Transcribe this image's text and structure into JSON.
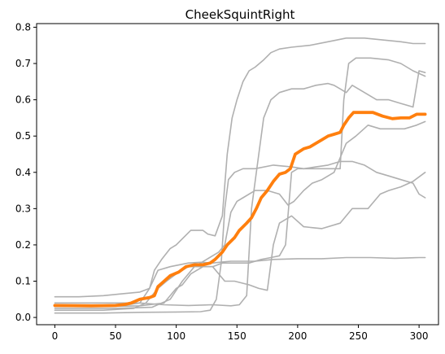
{
  "chart_data": {
    "type": "line",
    "title": "CheekSquintRight",
    "xlabel": "",
    "ylabel": "",
    "xlim": [
      -15,
      316
    ],
    "ylim": [
      -0.02,
      0.81
    ],
    "xticks": [
      0,
      50,
      100,
      150,
      200,
      250,
      300
    ],
    "yticks": [
      0.0,
      0.1,
      0.2,
      0.3,
      0.4,
      0.5,
      0.6,
      0.7,
      0.8
    ],
    "grid": false,
    "legend": "none",
    "colors": {
      "background_series": "#b0b0b0",
      "mean_series": "#ff7f0e"
    },
    "series": [
      {
        "style": "gray",
        "points": [
          [
            0,
            0.057
          ],
          [
            20,
            0.057
          ],
          [
            40,
            0.06
          ],
          [
            55,
            0.065
          ],
          [
            70,
            0.07
          ],
          [
            78,
            0.08
          ],
          [
            85,
            0.13
          ],
          [
            95,
            0.14
          ],
          [
            110,
            0.15
          ],
          [
            120,
            0.152
          ],
          [
            130,
            0.15
          ],
          [
            138,
            0.153
          ],
          [
            145,
            0.155
          ],
          [
            165,
            0.155
          ],
          [
            180,
            0.16
          ],
          [
            200,
            0.162
          ],
          [
            220,
            0.162
          ],
          [
            240,
            0.165
          ],
          [
            260,
            0.165
          ],
          [
            280,
            0.163
          ],
          [
            300,
            0.165
          ],
          [
            305,
            0.165
          ]
        ]
      },
      {
        "style": "gray",
        "points": [
          [
            0,
            0.03
          ],
          [
            30,
            0.03
          ],
          [
            50,
            0.032
          ],
          [
            60,
            0.035
          ],
          [
            70,
            0.04
          ],
          [
            78,
            0.08
          ],
          [
            82,
            0.13
          ],
          [
            88,
            0.16
          ],
          [
            95,
            0.19
          ],
          [
            100,
            0.2
          ],
          [
            112,
            0.24
          ],
          [
            122,
            0.24
          ],
          [
            126,
            0.23
          ],
          [
            132,
            0.225
          ],
          [
            138,
            0.28
          ],
          [
            142,
            0.45
          ],
          [
            146,
            0.55
          ],
          [
            150,
            0.6
          ],
          [
            155,
            0.65
          ],
          [
            160,
            0.68
          ],
          [
            165,
            0.69
          ],
          [
            172,
            0.71
          ],
          [
            178,
            0.73
          ],
          [
            185,
            0.74
          ],
          [
            195,
            0.745
          ],
          [
            210,
            0.75
          ],
          [
            225,
            0.76
          ],
          [
            240,
            0.77
          ],
          [
            255,
            0.77
          ],
          [
            270,
            0.765
          ],
          [
            285,
            0.76
          ],
          [
            295,
            0.755
          ],
          [
            305,
            0.755
          ]
        ]
      },
      {
        "style": "gray",
        "points": [
          [
            0,
            0.04
          ],
          [
            40,
            0.04
          ],
          [
            70,
            0.04
          ],
          [
            90,
            0.035
          ],
          [
            110,
            0.033
          ],
          [
            130,
            0.035
          ],
          [
            145,
            0.032
          ],
          [
            152,
            0.035
          ],
          [
            158,
            0.06
          ],
          [
            162,
            0.3
          ],
          [
            166,
            0.4
          ],
          [
            172,
            0.55
          ],
          [
            178,
            0.6
          ],
          [
            185,
            0.62
          ],
          [
            195,
            0.63
          ],
          [
            205,
            0.63
          ],
          [
            215,
            0.64
          ],
          [
            225,
            0.645
          ],
          [
            230,
            0.64
          ],
          [
            235,
            0.63
          ],
          [
            240,
            0.62
          ],
          [
            245,
            0.64
          ],
          [
            255,
            0.62
          ],
          [
            265,
            0.6
          ],
          [
            275,
            0.6
          ],
          [
            285,
            0.59
          ],
          [
            295,
            0.58
          ],
          [
            300,
            0.68
          ],
          [
            305,
            0.675
          ]
        ]
      },
      {
        "style": "gray",
        "points": [
          [
            0,
            0.012
          ],
          [
            40,
            0.012
          ],
          [
            70,
            0.014
          ],
          [
            100,
            0.015
          ],
          [
            120,
            0.016
          ],
          [
            128,
            0.02
          ],
          [
            133,
            0.05
          ],
          [
            137,
            0.15
          ],
          [
            140,
            0.3
          ],
          [
            143,
            0.38
          ],
          [
            148,
            0.4
          ],
          [
            155,
            0.41
          ],
          [
            165,
            0.41
          ],
          [
            180,
            0.42
          ],
          [
            195,
            0.415
          ],
          [
            205,
            0.41
          ],
          [
            215,
            0.415
          ],
          [
            225,
            0.42
          ],
          [
            235,
            0.43
          ],
          [
            245,
            0.43
          ],
          [
            255,
            0.42
          ],
          [
            265,
            0.4
          ],
          [
            275,
            0.39
          ],
          [
            285,
            0.38
          ],
          [
            295,
            0.37
          ],
          [
            300,
            0.34
          ],
          [
            305,
            0.33
          ]
        ]
      },
      {
        "style": "gray",
        "points": [
          [
            0,
            0.03
          ],
          [
            40,
            0.03
          ],
          [
            70,
            0.032
          ],
          [
            90,
            0.04
          ],
          [
            100,
            0.08
          ],
          [
            105,
            0.09
          ],
          [
            112,
            0.12
          ],
          [
            122,
            0.14
          ],
          [
            130,
            0.14
          ],
          [
            138,
            0.15
          ],
          [
            145,
            0.15
          ],
          [
            152,
            0.15
          ],
          [
            160,
            0.15
          ],
          [
            170,
            0.16
          ],
          [
            178,
            0.165
          ],
          [
            185,
            0.17
          ],
          [
            190,
            0.2
          ],
          [
            195,
            0.4
          ],
          [
            200,
            0.41
          ],
          [
            210,
            0.41
          ],
          [
            225,
            0.41
          ],
          [
            235,
            0.41
          ],
          [
            238,
            0.6
          ],
          [
            242,
            0.7
          ],
          [
            248,
            0.715
          ],
          [
            260,
            0.715
          ],
          [
            275,
            0.71
          ],
          [
            285,
            0.7
          ],
          [
            295,
            0.68
          ],
          [
            305,
            0.665
          ]
        ]
      },
      {
        "style": "gray",
        "points": [
          [
            0,
            0.02
          ],
          [
            40,
            0.02
          ],
          [
            65,
            0.025
          ],
          [
            75,
            0.04
          ],
          [
            80,
            0.06
          ],
          [
            85,
            0.08
          ],
          [
            92,
            0.1
          ],
          [
            100,
            0.12
          ],
          [
            110,
            0.14
          ],
          [
            120,
            0.14
          ],
          [
            130,
            0.14
          ],
          [
            135,
            0.12
          ],
          [
            140,
            0.1
          ],
          [
            148,
            0.1
          ],
          [
            160,
            0.09
          ],
          [
            168,
            0.08
          ],
          [
            175,
            0.075
          ],
          [
            180,
            0.2
          ],
          [
            185,
            0.26
          ],
          [
            195,
            0.28
          ],
          [
            205,
            0.25
          ],
          [
            220,
            0.245
          ],
          [
            235,
            0.26
          ],
          [
            245,
            0.3
          ],
          [
            258,
            0.3
          ],
          [
            268,
            0.34
          ],
          [
            275,
            0.35
          ],
          [
            285,
            0.36
          ],
          [
            295,
            0.375
          ],
          [
            305,
            0.4
          ]
        ]
      },
      {
        "style": "gray",
        "points": [
          [
            0,
            0.025
          ],
          [
            50,
            0.025
          ],
          [
            80,
            0.028
          ],
          [
            95,
            0.05
          ],
          [
            105,
            0.1
          ],
          [
            115,
            0.14
          ],
          [
            125,
            0.16
          ],
          [
            135,
            0.18
          ],
          [
            140,
            0.2
          ],
          [
            145,
            0.29
          ],
          [
            150,
            0.32
          ],
          [
            155,
            0.33
          ],
          [
            165,
            0.35
          ],
          [
            175,
            0.35
          ],
          [
            185,
            0.34
          ],
          [
            192,
            0.31
          ],
          [
            197,
            0.32
          ],
          [
            205,
            0.35
          ],
          [
            212,
            0.37
          ],
          [
            220,
            0.38
          ],
          [
            230,
            0.4
          ],
          [
            240,
            0.48
          ],
          [
            248,
            0.5
          ],
          [
            258,
            0.53
          ],
          [
            268,
            0.52
          ],
          [
            278,
            0.52
          ],
          [
            288,
            0.52
          ],
          [
            298,
            0.53
          ],
          [
            305,
            0.54
          ]
        ]
      },
      {
        "style": "mean",
        "points": [
          [
            0,
            0.033
          ],
          [
            30,
            0.032
          ],
          [
            50,
            0.033
          ],
          [
            58,
            0.036
          ],
          [
            63,
            0.04
          ],
          [
            70,
            0.05
          ],
          [
            78,
            0.055
          ],
          [
            82,
            0.06
          ],
          [
            85,
            0.085
          ],
          [
            90,
            0.1
          ],
          [
            95,
            0.115
          ],
          [
            102,
            0.125
          ],
          [
            108,
            0.14
          ],
          [
            115,
            0.145
          ],
          [
            122,
            0.145
          ],
          [
            128,
            0.15
          ],
          [
            132,
            0.16
          ],
          [
            138,
            0.18
          ],
          [
            142,
            0.2
          ],
          [
            148,
            0.22
          ],
          [
            152,
            0.24
          ],
          [
            158,
            0.26
          ],
          [
            162,
            0.275
          ],
          [
            166,
            0.3
          ],
          [
            170,
            0.33
          ],
          [
            175,
            0.35
          ],
          [
            180,
            0.375
          ],
          [
            185,
            0.395
          ],
          [
            190,
            0.4
          ],
          [
            194,
            0.41
          ],
          [
            198,
            0.45
          ],
          [
            205,
            0.465
          ],
          [
            210,
            0.47
          ],
          [
            215,
            0.48
          ],
          [
            220,
            0.49
          ],
          [
            225,
            0.5
          ],
          [
            230,
            0.505
          ],
          [
            235,
            0.51
          ],
          [
            238,
            0.53
          ],
          [
            242,
            0.55
          ],
          [
            246,
            0.565
          ],
          [
            255,
            0.565
          ],
          [
            262,
            0.565
          ],
          [
            270,
            0.555
          ],
          [
            278,
            0.548
          ],
          [
            285,
            0.55
          ],
          [
            292,
            0.55
          ],
          [
            298,
            0.56
          ],
          [
            305,
            0.56
          ]
        ]
      }
    ]
  }
}
